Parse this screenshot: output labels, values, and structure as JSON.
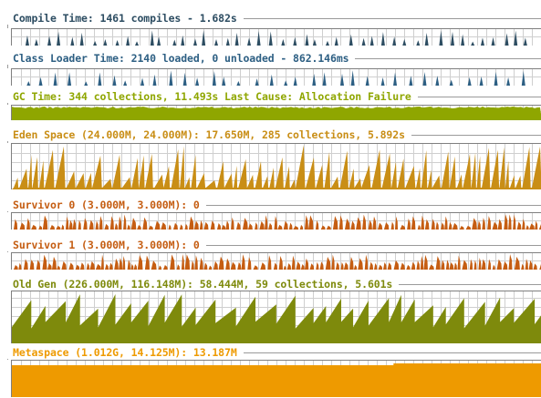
{
  "panels": [
    {
      "id": "compile",
      "title": "Compile Time: 1461 compiles - 1.682s",
      "color": "#2d4d62",
      "top": 13,
      "kind": "spikes",
      "plotTop": 18,
      "plotH": 18
    },
    {
      "id": "classloader",
      "title": "Class Loader Time: 2140 loaded, 0 unloaded - 862.146ms",
      "color": "#2d5f83",
      "top": 57,
      "kind": "spikes",
      "plotTop": 18,
      "plotH": 18
    },
    {
      "id": "gc",
      "title": "GC Time: 344 collections, 11.493s  Last Cause: Allocation Failure",
      "color": "#8fa600",
      "top": 99,
      "kind": "gc",
      "plotTop": 16,
      "plotH": 16
    },
    {
      "id": "eden",
      "title": "Eden Space (24.000M, 24.000M): 17.650M, 285 collections, 5.892s",
      "color": "#c98e16",
      "top": 141,
      "kind": "saw",
      "plotTop": 16,
      "plotH": 50
    },
    {
      "id": "survivor0",
      "title": "Survivor 0 (3.000M, 3.000M): 0",
      "color": "#c55d12",
      "top": 218,
      "kind": "bumps",
      "plotTop": 15,
      "plotH": 18
    },
    {
      "id": "survivor1",
      "title": "Survivor 1 (3.000M, 3.000M): 0",
      "color": "#c55d12",
      "top": 262,
      "kind": "bumps",
      "plotTop": 15,
      "plotH": 18
    },
    {
      "id": "oldgen",
      "title": "Old Gen (226.000M, 116.148M): 58.444M, 59 collections, 5.601s",
      "color": "#7e8a0c",
      "top": 305,
      "kind": "oldgen",
      "plotTop": 14,
      "plotH": 57
    },
    {
      "id": "metaspace",
      "title": "Metaspace (1.012G, 14.125M): 13.187M",
      "color": "#ee9a00",
      "top": 380,
      "kind": "meta",
      "plotTop": 15,
      "plotH": 40
    }
  ],
  "colors": {
    "grid": "#cfcfcf",
    "axis": "#7f7f7f",
    "rule": "#9a9a9a"
  }
}
